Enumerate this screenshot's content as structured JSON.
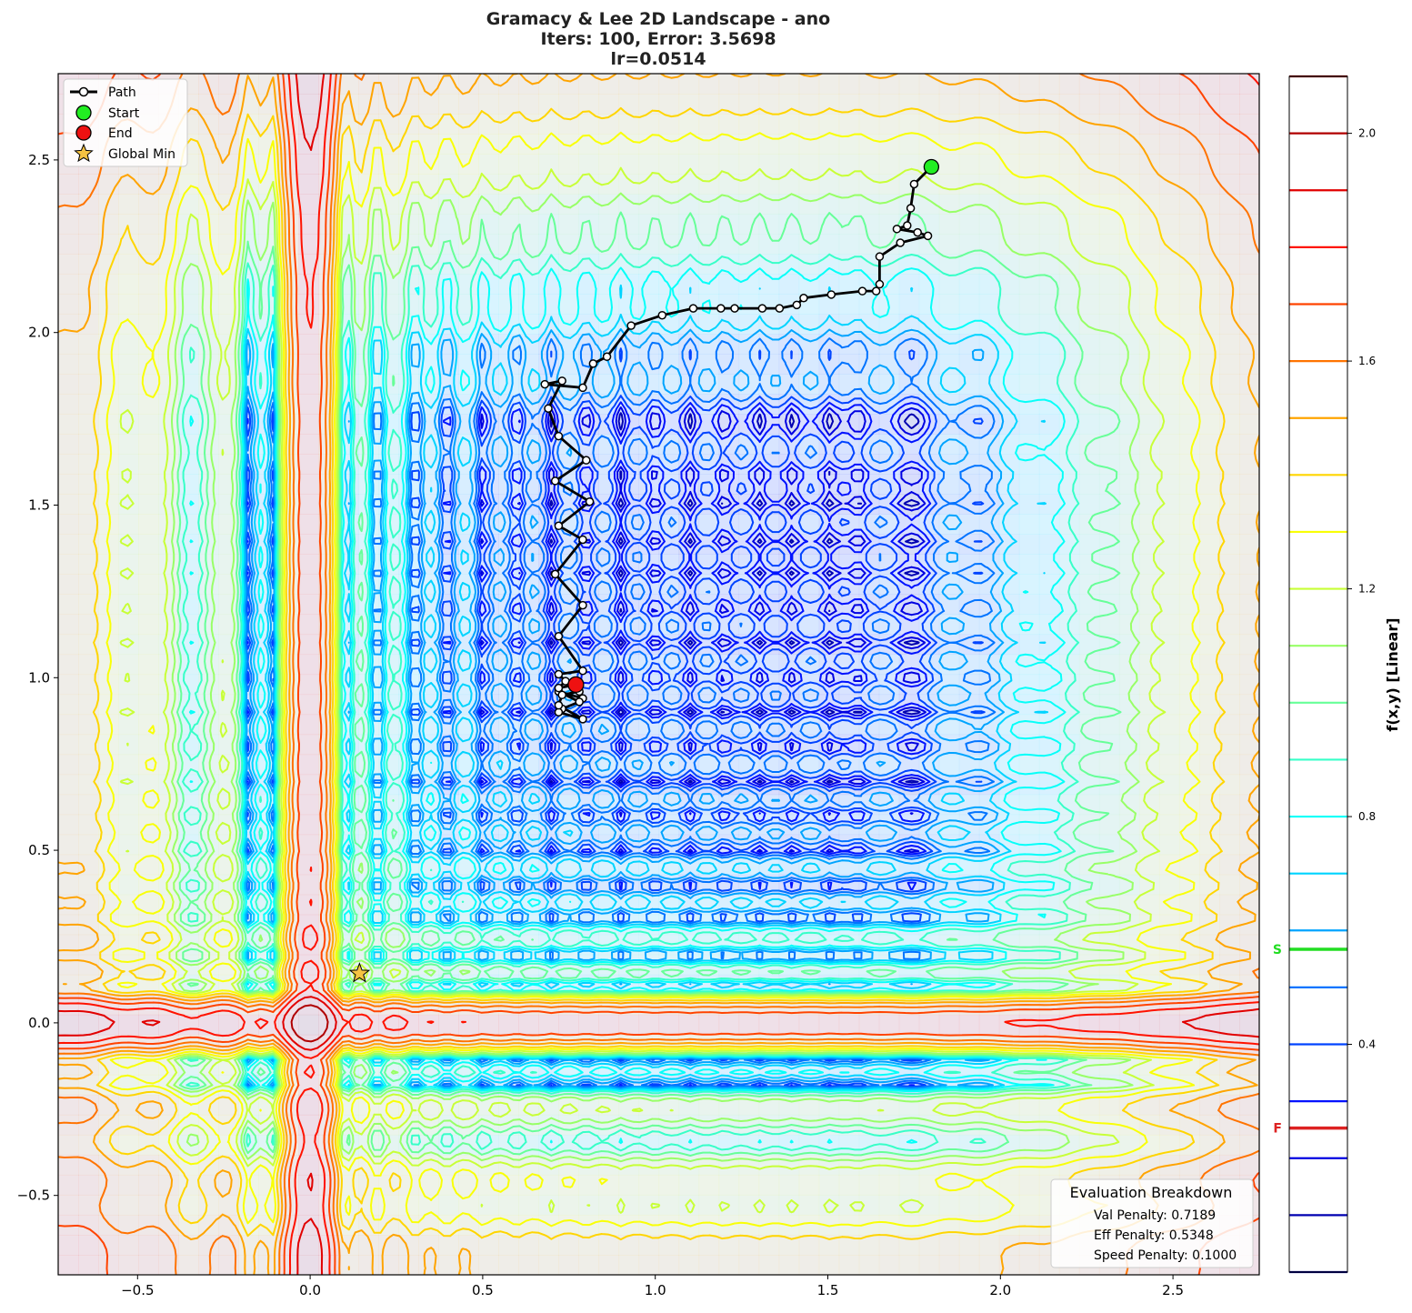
{
  "title": {
    "line1": "Gramacy & Lee 2D Landscape - ano",
    "line2": "Iters: 100, Error: 3.5698",
    "line3": "lr=0.0514"
  },
  "legend": {
    "path": "Path",
    "start": "Start",
    "end": "End",
    "global_min": "Global Min"
  },
  "evaluation": {
    "title": "Evaluation Breakdown",
    "val": "Val Penalty: 0.7189",
    "eff": "Eff Penalty: 0.5348",
    "speed": "Speed Penalty: 0.1000"
  },
  "colorbar": {
    "label": "f(x,y) [Linear]",
    "min": 0.0,
    "max": 2.1,
    "ticks": [
      0.4,
      0.8,
      1.2,
      1.6,
      2.0
    ],
    "tick_labels": [
      "0.4",
      "0.8",
      "1.2",
      "1.6",
      "2.0"
    ],
    "levels": [
      0.0,
      0.1,
      0.2,
      0.3,
      0.4,
      0.5,
      0.6,
      0.7,
      0.8,
      0.9,
      1.0,
      1.1,
      1.2,
      1.3,
      1.4,
      1.5,
      1.6,
      1.7,
      1.8,
      1.9,
      2.0,
      2.1
    ],
    "start_marker": {
      "label": "S",
      "value": 0.567,
      "color": "#22dd22"
    },
    "end_marker": {
      "label": "F",
      "value": 0.253,
      "color": "#dd2222"
    }
  },
  "chart_data": {
    "type": "line",
    "title": "Gramacy & Lee 2D Landscape - ano\nIters: 100, Error: 3.5698\nlr=0.0514",
    "xlabel": "",
    "ylabel": "",
    "xlim": [
      -0.73,
      2.75
    ],
    "ylim": [
      -0.73,
      2.75
    ],
    "xticks": [
      -0.5,
      0.0,
      0.5,
      1.0,
      1.5,
      2.0,
      2.5
    ],
    "xtick_labels": [
      "−0.5",
      "0.0",
      "0.5",
      "1.0",
      "1.5",
      "2.0",
      "2.5"
    ],
    "yticks": [
      -0.5,
      0.0,
      0.5,
      1.0,
      1.5,
      2.0,
      2.5
    ],
    "ytick_labels": [
      "−0.5",
      "0.0",
      "0.5",
      "1.0",
      "1.5",
      "2.0",
      "2.5"
    ],
    "grid": false,
    "legend_position": "top-left",
    "series": [
      {
        "name": "Path",
        "color": "#000000",
        "x": [
          1.8,
          1.75,
          1.74,
          1.73,
          1.7,
          1.76,
          1.79,
          1.71,
          1.65,
          1.65,
          1.64,
          1.6,
          1.51,
          1.43,
          1.41,
          1.36,
          1.31,
          1.23,
          1.19,
          1.11,
          1.02,
          0.93,
          0.86,
          0.82,
          0.79,
          0.68,
          0.73,
          0.69,
          0.72,
          0.8,
          0.71,
          0.81,
          0.72,
          0.79,
          0.71,
          0.79,
          0.72,
          0.79,
          0.72,
          0.79,
          0.72,
          0.78,
          0.73,
          0.72,
          0.79,
          0.72,
          0.73,
          0.78,
          0.74,
          0.72,
          0.77
        ],
        "y": [
          2.48,
          2.43,
          2.36,
          2.31,
          2.3,
          2.29,
          2.28,
          2.26,
          2.22,
          2.14,
          2.12,
          2.12,
          2.11,
          2.1,
          2.08,
          2.07,
          2.07,
          2.07,
          2.07,
          2.07,
          2.05,
          2.02,
          1.93,
          1.91,
          1.84,
          1.85,
          1.86,
          1.78,
          1.7,
          1.63,
          1.57,
          1.51,
          1.44,
          1.4,
          1.3,
          1.21,
          1.12,
          1.02,
          1.01,
          0.94,
          0.96,
          0.93,
          0.91,
          0.9,
          0.88,
          0.92,
          0.95,
          0.96,
          0.99,
          0.97,
          0.98
        ]
      }
    ],
    "start": {
      "x": 1.8,
      "y": 2.48
    },
    "end": {
      "x": 0.77,
      "y": 0.98
    },
    "global_min": {
      "x": 0.143,
      "y": 0.143
    },
    "contour_function": "f(x,y) = sum over u in {x,y} of | sin(10*pi*u)/(2u) + (u-1)^4 |, mapped to levels 0.0–2.1"
  }
}
